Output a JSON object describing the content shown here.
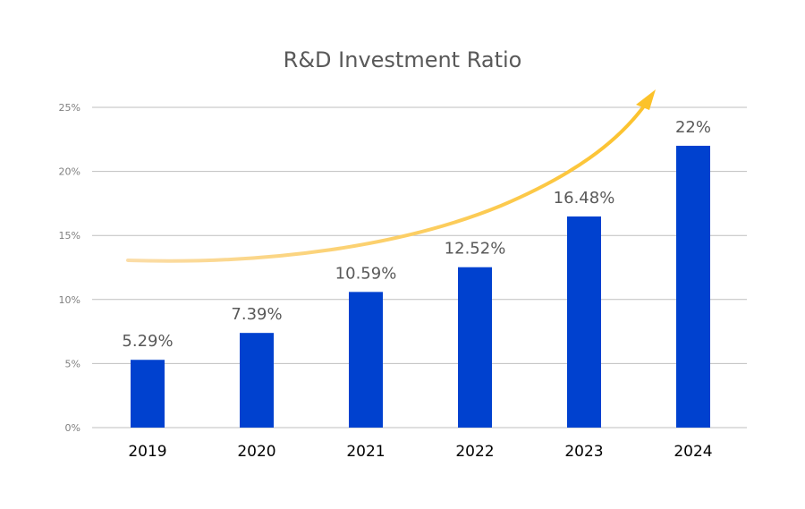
{
  "chart_data": {
    "type": "bar",
    "title": "R&D Investment Ratio",
    "categories": [
      "2019",
      "2020",
      "2021",
      "2022",
      "2023",
      "2024"
    ],
    "values": [
      5.29,
      7.39,
      10.59,
      12.52,
      16.48,
      22
    ],
    "data_labels": [
      "5.29%",
      "7.39%",
      "10.59%",
      "12.52%",
      "16.48%",
      "22%"
    ],
    "ylim": [
      0,
      25
    ],
    "yticks": [
      0,
      5,
      10,
      15,
      20,
      25
    ],
    "ytick_labels": [
      "0%",
      "5%",
      "10%",
      "15%",
      "20%",
      "25%"
    ],
    "xlabel": "",
    "ylabel": "",
    "grid": true,
    "legend": "none",
    "annotation": "upward trend arrow",
    "colors": {
      "bar": "#0041CF",
      "grid": "#BFBFBF",
      "arrow_start": "#FBDDA8",
      "arrow_end": "#FCC22A"
    }
  }
}
